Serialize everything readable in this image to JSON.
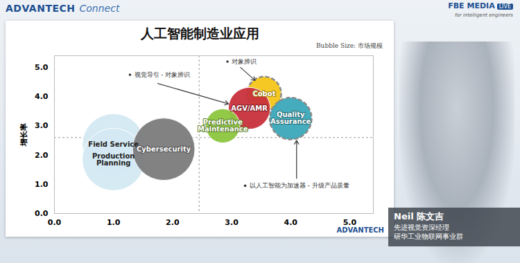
{
  "chart_data": {
    "type": "bubble",
    "title": "人工智能制造业应用",
    "size_label": "Bubble Size: 市场规模",
    "y_label": "增长率",
    "xlim": [
      0,
      5.4
    ],
    "ylim": [
      0,
      5.4
    ],
    "xticks": [
      {
        "value": 0,
        "label": "0.0"
      },
      {
        "value": 1,
        "label": "1.0"
      },
      {
        "value": 2,
        "label": "2.0"
      },
      {
        "value": 3,
        "label": "3.0"
      },
      {
        "value": 4,
        "label": "4.0"
      },
      {
        "value": 5,
        "label": "5.0"
      }
    ],
    "yticks": [
      {
        "value": 0,
        "label": "0.0"
      },
      {
        "value": 1,
        "label": "1.0"
      },
      {
        "value": 2,
        "label": "2.0"
      },
      {
        "value": 3,
        "label": "3.0"
      },
      {
        "value": 4,
        "label": "4.0"
      },
      {
        "value": 5,
        "label": "5.0"
      }
    ],
    "grid": false,
    "reference_lines": {
      "x": 2.45,
      "y": 2.6
    },
    "series": [
      {
        "name": "Field Service",
        "color": "#d4e9f2",
        "x": 1.0,
        "y": 2.35,
        "size": 100,
        "line_style": "solid"
      },
      {
        "name": "Production Planning",
        "color": "#d4e9f2",
        "x": 1.0,
        "y": 1.85,
        "size": 100,
        "line_style": "solid"
      },
      {
        "name": "Cybersecurity",
        "color": "#7b7b7b",
        "x": 1.85,
        "y": 2.2,
        "size": 100,
        "line_style": "solid"
      },
      {
        "name": "Cobot",
        "color": "#f5c518",
        "x": 3.55,
        "y": 4.1,
        "size": 30,
        "line_style": "dashed"
      },
      {
        "name": "AGV/AMR",
        "color": "#c8303c",
        "x": 3.3,
        "y": 3.6,
        "size": 45,
        "line_style": "solid"
      },
      {
        "name": "Predictive Maintenance",
        "color": "#8dc63f",
        "x": 2.85,
        "y": 3.0,
        "size": 30,
        "line_style": "solid"
      },
      {
        "name": "Quality Assurance",
        "color": "#3aa8b8",
        "x": 4.0,
        "y": 3.25,
        "size": 45,
        "line_style": "dashed"
      }
    ],
    "annotations": [
      {
        "text": "视觉导引 - 对象辨识"
      },
      {
        "text": "对象辨识"
      },
      {
        "text": "以人工智能为加速器 - 升级产品质量"
      }
    ]
  },
  "page": {
    "header_left": [
      "ADVANTECH",
      "Connect"
    ],
    "header_right": [
      "FBE MEDIA",
      "LIVE",
      "for intelligent engineers"
    ],
    "slide_logo": "ADVANTECH",
    "presenter": {
      "name": "Neil 陈文吉",
      "role": "先进视觉资深经理",
      "org": "研华工业物联网事业群"
    }
  }
}
